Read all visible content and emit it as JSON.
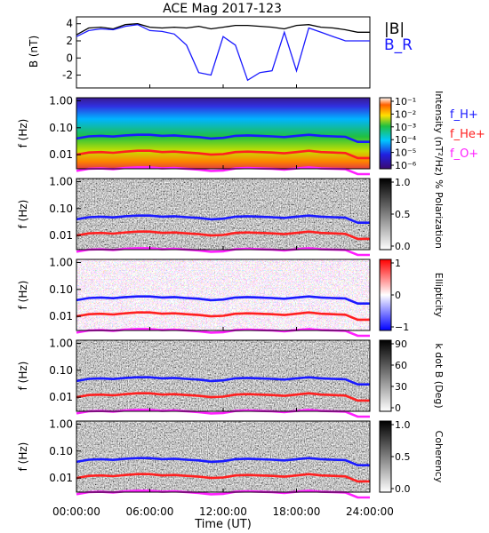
{
  "title": "ACE Mag 2017-123",
  "x_axis": {
    "label": "Time (UT)",
    "ticks": [
      "00:00:00",
      "06:00:00",
      "12:00:00",
      "18:00:00",
      "24:00:00"
    ]
  },
  "chart_data": [
    {
      "type": "line",
      "panel": "magnetic-field",
      "ylabel": "B (nT)",
      "ylim": [
        -3.5,
        4.8
      ],
      "yticks": [
        "-2",
        "0",
        "2",
        "4"
      ],
      "xlim_hours": [
        0,
        24
      ],
      "legend": [
        "|B|",
        "B_R"
      ],
      "legend_placement": "right-outside",
      "series": [
        {
          "name": "|B|",
          "color": "#000000",
          "x": [
            0,
            1,
            2,
            3,
            4,
            5,
            6,
            7,
            8,
            9,
            10,
            11,
            12,
            13,
            14,
            15,
            16,
            17,
            18,
            19,
            20,
            21,
            22,
            23,
            24
          ],
          "values": [
            2.7,
            3.5,
            3.6,
            3.4,
            3.9,
            4.0,
            3.6,
            3.5,
            3.6,
            3.5,
            3.7,
            3.4,
            3.6,
            3.8,
            3.8,
            3.7,
            3.6,
            3.4,
            3.8,
            3.9,
            3.6,
            3.5,
            3.3,
            3.0,
            3.0
          ]
        },
        {
          "name": "B_R",
          "color": "#1a1aff",
          "x": [
            0,
            1,
            2,
            3,
            4,
            5,
            6,
            7,
            8,
            9,
            10,
            11,
            12,
            13,
            14,
            15,
            16,
            17,
            18,
            19,
            20,
            21,
            22,
            23,
            24
          ],
          "values": [
            2.5,
            3.2,
            3.4,
            3.3,
            3.7,
            3.9,
            3.2,
            3.1,
            2.8,
            1.5,
            -1.7,
            -2.0,
            2.5,
            1.5,
            -2.6,
            -1.7,
            -1.5,
            3.0,
            -1.5,
            3.5,
            3.0,
            2.5,
            2.0,
            2.0,
            2.0
          ]
        }
      ]
    },
    {
      "type": "heatmap",
      "panel": "power-spectral-density",
      "ylabel": "f (Hz)",
      "yscale": "log",
      "yticks": [
        "1.00",
        "0.10",
        "0.01"
      ],
      "colorbar": {
        "label": "Intensity (nT²/Hz)",
        "scale": "log",
        "ticks": [
          "10⁻¹",
          "10⁻²",
          "10⁻³",
          "10⁻⁴",
          "10⁻⁵",
          "10⁻⁶"
        ],
        "colors": [
          "#3a0a70",
          "#2020e0",
          "#00c8ff",
          "#20c040",
          "#ffe000",
          "#ff6000",
          "#ffffff"
        ]
      },
      "legend": [
        "f_H+",
        "f_He+",
        "f_O+"
      ],
      "legend_placement": "right-outside"
    },
    {
      "type": "heatmap",
      "panel": "polarization",
      "ylabel": "f (Hz)",
      "yscale": "log",
      "yticks": [
        "1.00",
        "0.10",
        "0.01"
      ],
      "colorbar": {
        "label": "% Polarization",
        "ticks": [
          "1.0",
          "0.5",
          "0.0"
        ],
        "colors": [
          "#ffffff",
          "#000000"
        ]
      }
    },
    {
      "type": "heatmap",
      "panel": "ellipticity",
      "ylabel": "f (Hz)",
      "yscale": "log",
      "yticks": [
        "1.00",
        "0.10",
        "0.01"
      ],
      "colorbar": {
        "label": "Ellipticity",
        "ticks": [
          "1",
          "0",
          "−1"
        ],
        "colors": [
          "#ff0000",
          "#ffffff",
          "#0000ff"
        ]
      }
    },
    {
      "type": "heatmap",
      "panel": "k-dot-b",
      "ylabel": "f (Hz)",
      "yscale": "log",
      "yticks": [
        "1.00",
        "0.10",
        "0.01"
      ],
      "colorbar": {
        "label": "k dot B (Deg)",
        "ticks": [
          "90",
          "60",
          "30",
          "0"
        ],
        "colors": [
          "#ffffff",
          "#000000"
        ]
      }
    },
    {
      "type": "heatmap",
      "panel": "coherency",
      "ylabel": "f (Hz)",
      "yscale": "log",
      "yticks": [
        "1.00",
        "0.10",
        "0.01"
      ],
      "colorbar": {
        "label": "Coherency",
        "ticks": [
          "1.0",
          "0.5",
          "0.0"
        ],
        "colors": [
          "#ffffff",
          "#000000"
        ]
      }
    }
  ],
  "gyrofrequency_lines": {
    "f_H+": {
      "color": "#1a1aff",
      "x_hours": [
        0,
        1,
        2,
        3,
        4,
        5,
        6,
        7,
        8,
        9,
        10,
        11,
        12,
        13,
        14,
        15,
        16,
        17,
        18,
        19,
        20,
        21,
        22,
        23,
        24
      ],
      "values_hz": [
        0.04,
        0.048,
        0.05,
        0.047,
        0.052,
        0.055,
        0.055,
        0.05,
        0.052,
        0.048,
        0.045,
        0.04,
        0.042,
        0.05,
        0.052,
        0.05,
        0.048,
        0.045,
        0.05,
        0.055,
        0.05,
        0.048,
        0.046,
        0.03,
        0.03
      ]
    },
    "f_He+": {
      "color": "#ff2020",
      "x_hours": [
        0,
        1,
        2,
        3,
        4,
        5,
        6,
        7,
        8,
        9,
        10,
        11,
        12,
        13,
        14,
        15,
        16,
        17,
        18,
        19,
        20,
        21,
        22,
        23,
        24
      ],
      "values_hz": [
        0.01,
        0.012,
        0.0125,
        0.0118,
        0.013,
        0.014,
        0.014,
        0.0125,
        0.013,
        0.012,
        0.0112,
        0.01,
        0.0105,
        0.0125,
        0.013,
        0.0125,
        0.012,
        0.0112,
        0.0125,
        0.014,
        0.0125,
        0.012,
        0.0115,
        0.0075,
        0.0075
      ]
    },
    "f_O+": {
      "color": "#ff20ff",
      "x_hours": [
        0,
        1,
        2,
        3,
        4,
        5,
        6,
        7,
        8,
        9,
        10,
        11,
        12,
        13,
        14,
        15,
        16,
        17,
        18,
        19,
        20,
        21,
        22,
        23,
        24
      ],
      "values_hz": [
        0.0025,
        0.003,
        0.0031,
        0.0029,
        0.0032,
        0.0034,
        0.0034,
        0.0031,
        0.0032,
        0.003,
        0.0028,
        0.0025,
        0.0026,
        0.0031,
        0.0032,
        0.0031,
        0.003,
        0.0028,
        0.0031,
        0.0034,
        0.0031,
        0.003,
        0.0029,
        0.0019,
        0.0019
      ]
    }
  }
}
